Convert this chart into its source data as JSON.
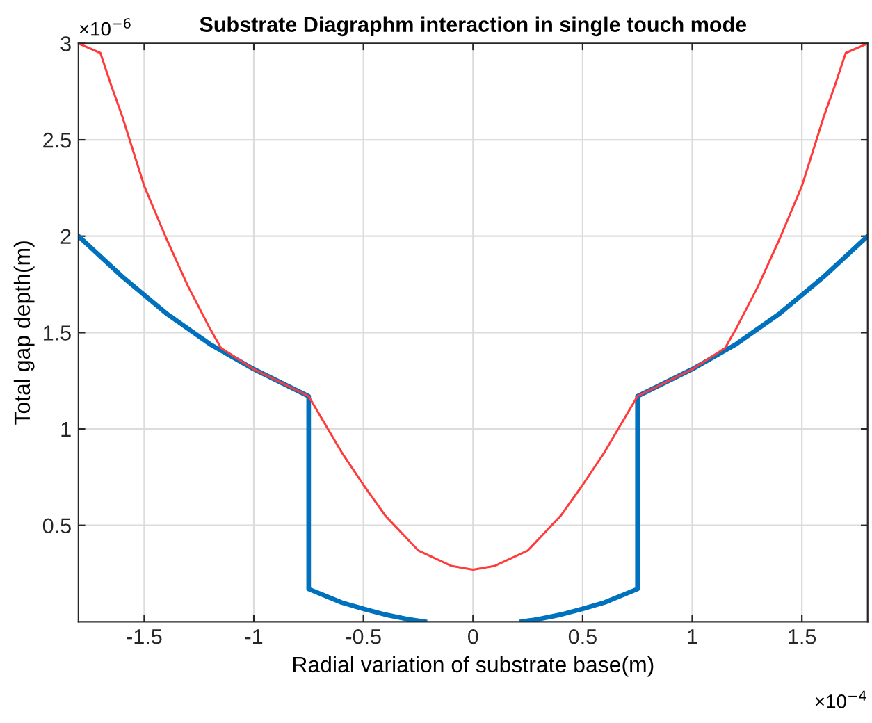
{
  "chart_data": {
    "type": "line",
    "title": "Substrate Diagraphm interaction in single touch mode",
    "xlabel": "Radial variation of substrate base(m)",
    "ylabel": "Total gap depth(m)",
    "annotations": [
      "×10$^{−6}$",
      "×10$^{−4}$"
    ],
    "series": [
      {
        "color": "#0072bd",
        "x": [
          -1.8,
          -1.6,
          -1.4,
          -1.2,
          -1.0,
          -0.75,
          -0.75,
          -0.6,
          -0.5,
          -0.4,
          -0.3,
          -0.22,
          0,
          0.22,
          0.3,
          0.4,
          0.5,
          0.6,
          0.75,
          0.75,
          1.0,
          1.2,
          1.4,
          1.6,
          1.8
        ],
        "values": [
          2.0,
          1.79,
          1.6,
          1.44,
          1.31,
          1.17,
          0.17,
          0.1,
          0.067,
          0.037,
          0.014,
          0.0,
          null,
          0.0,
          0.014,
          0.037,
          0.067,
          0.1,
          0.17,
          1.17,
          1.31,
          1.44,
          1.6,
          1.79,
          2.0
        ]
      },
      {
        "color": "#ff3b3b",
        "x": [
          -1.8,
          -1.7,
          -1.65,
          -1.6,
          -1.5,
          -1.4,
          -1.3,
          -1.25,
          -1.2,
          -1.15,
          -1.0,
          -0.75,
          -0.6,
          -0.5,
          -0.4,
          -0.25,
          -0.1,
          0,
          0.1,
          0.25,
          0.4,
          0.5,
          0.6,
          0.75,
          1.0,
          1.15,
          1.2,
          1.25,
          1.3,
          1.4,
          1.5,
          1.6,
          1.65,
          1.7,
          1.8
        ],
        "values": [
          3.0,
          2.95,
          2.78,
          2.62,
          2.26,
          1.99,
          1.74,
          1.63,
          1.52,
          1.42,
          1.31,
          1.17,
          0.88,
          0.71,
          0.55,
          0.37,
          0.29,
          0.27,
          0.29,
          0.37,
          0.55,
          0.71,
          0.88,
          1.17,
          1.31,
          1.42,
          1.52,
          1.63,
          1.74,
          1.99,
          2.26,
          2.62,
          2.78,
          2.95,
          3.0
        ]
      }
    ],
    "xlim": [
      -1.8,
      1.8
    ],
    "xticks": [
      -1.5,
      -1,
      -0.5,
      0,
      0.5,
      1,
      1.5
    ],
    "ylim": [
      0,
      3
    ],
    "yticks": [
      0.5,
      1,
      1.5,
      2,
      2.5,
      3
    ],
    "grid": true,
    "marker": "none",
    "line_style": "solid"
  }
}
